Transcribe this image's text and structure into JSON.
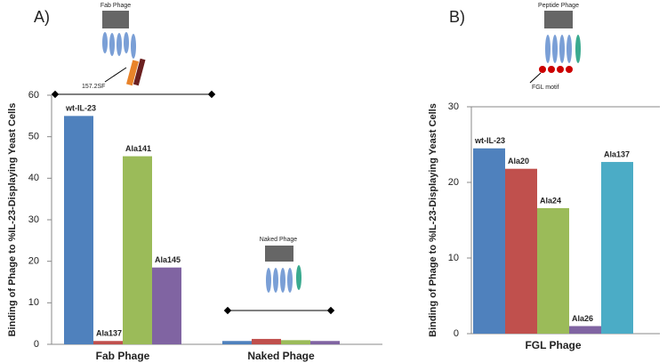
{
  "chart_data": [
    {
      "type": "bar",
      "panel": "A)",
      "y_label": "Binding of Phage to %IL-23-Displaying Yeast Cells",
      "categories": [
        "Fab Phage",
        "Naked Phage"
      ],
      "series": [
        {
          "name": "wt-IL-23",
          "color": "#4f81bd",
          "values": [
            55,
            0.8
          ]
        },
        {
          "name": "Ala137",
          "color": "#c0504d",
          "values": [
            0.8,
            1.3
          ]
        },
        {
          "name": "Ala141",
          "color": "#9bbb59",
          "values": [
            45.3,
            1.0
          ]
        },
        {
          "name": "Ala145",
          "color": "#8064a2",
          "values": [
            18.5,
            0.8
          ]
        }
      ],
      "bar_labels_on": "Fab Phage",
      "ylim": [
        0,
        60
      ],
      "yticks": [
        0,
        10,
        20,
        30,
        40,
        50,
        60
      ],
      "grid": false,
      "annotations": [
        "Fab Phage",
        "157.2SF",
        "Naked Phage"
      ]
    },
    {
      "type": "bar",
      "panel": "B)",
      "y_label": "Binding of Phage to %IL-23-Displaying Yeast Cells",
      "categories": [
        "FGL Phage"
      ],
      "series": [
        {
          "name": "wt-IL-23",
          "color": "#4f81bd",
          "values": [
            24.5
          ]
        },
        {
          "name": "Ala20",
          "color": "#c0504d",
          "values": [
            21.8
          ]
        },
        {
          "name": "Ala24",
          "color": "#9bbb59",
          "values": [
            16.6
          ]
        },
        {
          "name": "Ala26",
          "color": "#8064a2",
          "values": [
            1.0
          ]
        },
        {
          "name": "Ala137",
          "color": "#4bacc6",
          "values": [
            22.7
          ]
        }
      ],
      "bar_labels_on": "FGL Phage",
      "ylim": [
        0,
        30
      ],
      "yticks": [
        0,
        10,
        20,
        30
      ],
      "grid": false,
      "annotations": [
        "Peptide Phage",
        "FGL motif"
      ]
    }
  ]
}
